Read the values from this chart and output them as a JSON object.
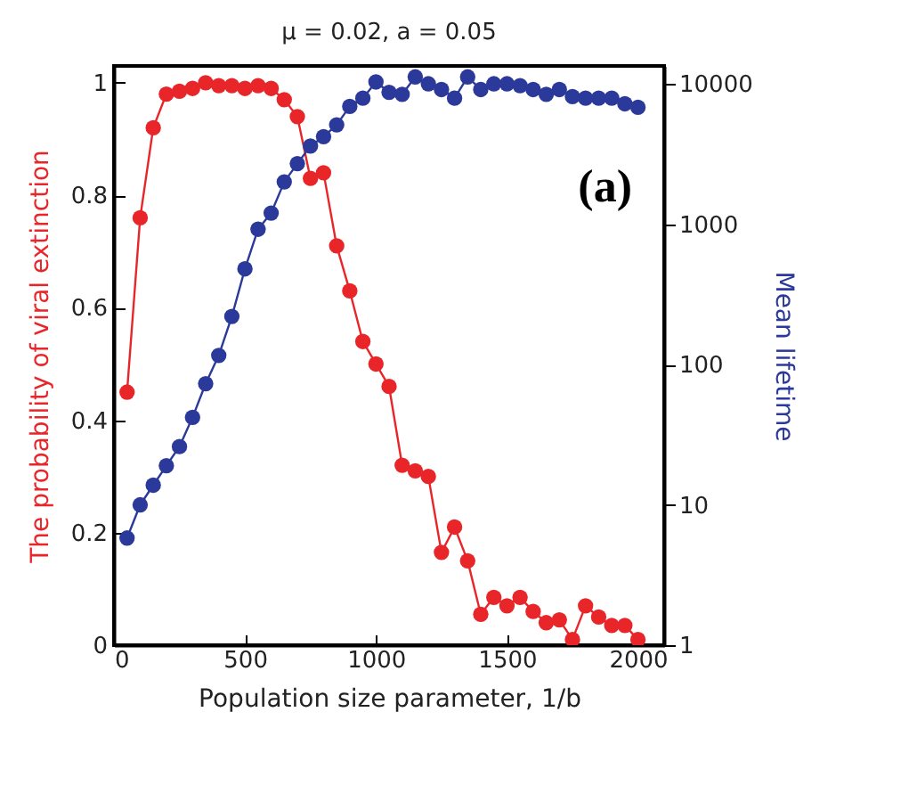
{
  "chart_data": {
    "type": "line",
    "title": "μ = 0.02, a = 0.05",
    "xlabel": "Population size parameter, 1/b",
    "ylabel": "The probability of viral  extinction",
    "y2label": "Mean lifetime",
    "annotations": [
      "(a)"
    ],
    "x": [
      50,
      100,
      150,
      200,
      250,
      300,
      350,
      400,
      450,
      500,
      550,
      600,
      650,
      700,
      750,
      800,
      850,
      900,
      950,
      1000,
      1050,
      1100,
      1150,
      1200,
      1250,
      1300,
      1350,
      1400,
      1450,
      1500,
      1550,
      1600,
      1650,
      1700,
      1750,
      1800,
      1850,
      1900,
      1950,
      2000
    ],
    "series": [
      {
        "color": "#e8262a",
        "values": [
          0.45,
          0.76,
          0.92,
          0.98,
          0.985,
          0.99,
          1.0,
          0.995,
          0.995,
          0.99,
          0.995,
          0.99,
          0.97,
          0.94,
          0.83,
          0.84,
          0.71,
          0.63,
          0.54,
          0.5,
          0.46,
          0.32,
          0.31,
          0.3,
          0.165,
          0.21,
          0.15,
          0.055,
          0.085,
          0.07,
          0.085,
          0.06,
          0.04,
          0.045,
          0.01,
          0.07,
          0.05,
          0.035,
          0.035,
          0.01
        ]
      },
      {
        "color": "#2b3a9a",
        "axis": "y2",
        "values": [
          5.8,
          10,
          13.8,
          19,
          26,
          42,
          73,
          116,
          220,
          480,
          920,
          1200,
          2000,
          2700,
          3600,
          4200,
          5100,
          6900,
          7900,
          10300,
          8700,
          8400,
          11200,
          10000,
          9100,
          7900,
          11200,
          9100,
          10000,
          10000,
          9700,
          9100,
          8400,
          9100,
          8100,
          7900,
          7900,
          7900,
          7200,
          6800
        ]
      }
    ],
    "xlim": [
      0,
      2100
    ],
    "xticks": [
      0,
      500,
      1000,
      1500,
      2000
    ],
    "ylim": [
      0,
      1.03
    ],
    "yticks": [
      0,
      0.2,
      0.4,
      0.6,
      0.8,
      1
    ],
    "y2lim": [
      1,
      13400
    ],
    "y2ticks": [
      1,
      10,
      100,
      1000,
      10000
    ],
    "log": "y2",
    "grid": false,
    "marker": "circle",
    "line_style": "solid"
  }
}
